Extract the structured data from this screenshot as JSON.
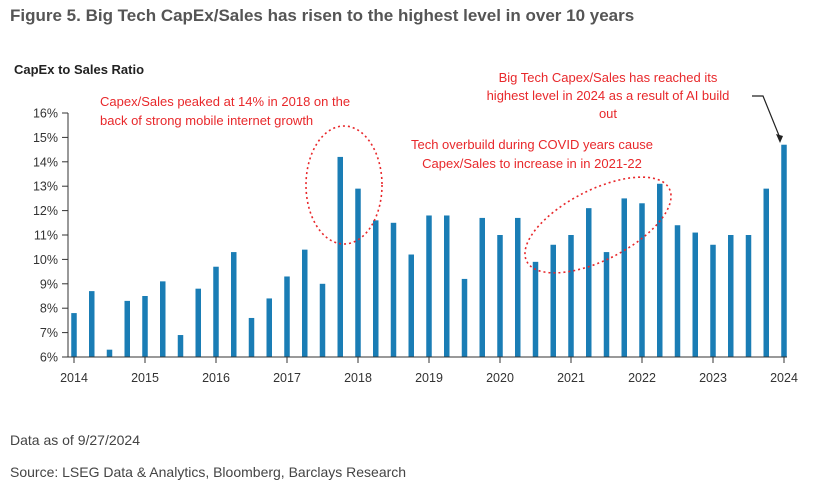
{
  "header": {
    "title": "Figure 5. Big Tech CapEx/Sales has risen to the highest level in over 10 years"
  },
  "footer": {
    "data_asof": "Data as of 9/27/2024",
    "source": "Source: LSEG Data & Analytics, Bloomberg, Barclays Research"
  },
  "colors": {
    "bar": "#1a7db5",
    "annotation": "#e8282b",
    "axis": "#333333"
  },
  "chart_data": {
    "type": "bar",
    "title": "Figure 5. Big Tech CapEx/Sales has risen to the highest level in over 10 years",
    "ylabel": "CapEx to Sales Ratio",
    "xlabel": "",
    "ylim": [
      6,
      16
    ],
    "yticks": [
      "6%",
      "7%",
      "8%",
      "9%",
      "10%",
      "11%",
      "12%",
      "13%",
      "14%",
      "15%",
      "16%"
    ],
    "xticks": [
      "2014",
      "2015",
      "2016",
      "2017",
      "2018",
      "2019",
      "2020",
      "2021",
      "2022",
      "2023",
      "2024"
    ],
    "grid": false,
    "series": [
      {
        "values": [
          7.8,
          8.7,
          6.3,
          8.3,
          8.5,
          9.1,
          6.9,
          8.8,
          9.7,
          10.3,
          7.6,
          8.4,
          9.3,
          10.4,
          9.0,
          14.2,
          12.9,
          11.6,
          11.5,
          10.2,
          11.8,
          11.8,
          9.2,
          11.7,
          11.0,
          11.7,
          9.9,
          10.6,
          11.0,
          12.1,
          10.3,
          12.5,
          12.3,
          13.1,
          11.4,
          11.1,
          10.6,
          11.0,
          11.0,
          12.9,
          14.7
        ]
      }
    ],
    "annotations": [
      {
        "lines": [
          "Capex/Sales peaked at 14% in 2018 on the",
          "back of strong mobile internet growth"
        ]
      },
      {
        "lines": [
          "Tech overbuild during COVID years cause",
          "Capex/Sales  to increase in in 2021-22"
        ]
      },
      {
        "lines": [
          "Big Tech Capex/Sales has reached its",
          "highest level in 2024 as a result of AI build",
          "out"
        ]
      }
    ]
  }
}
